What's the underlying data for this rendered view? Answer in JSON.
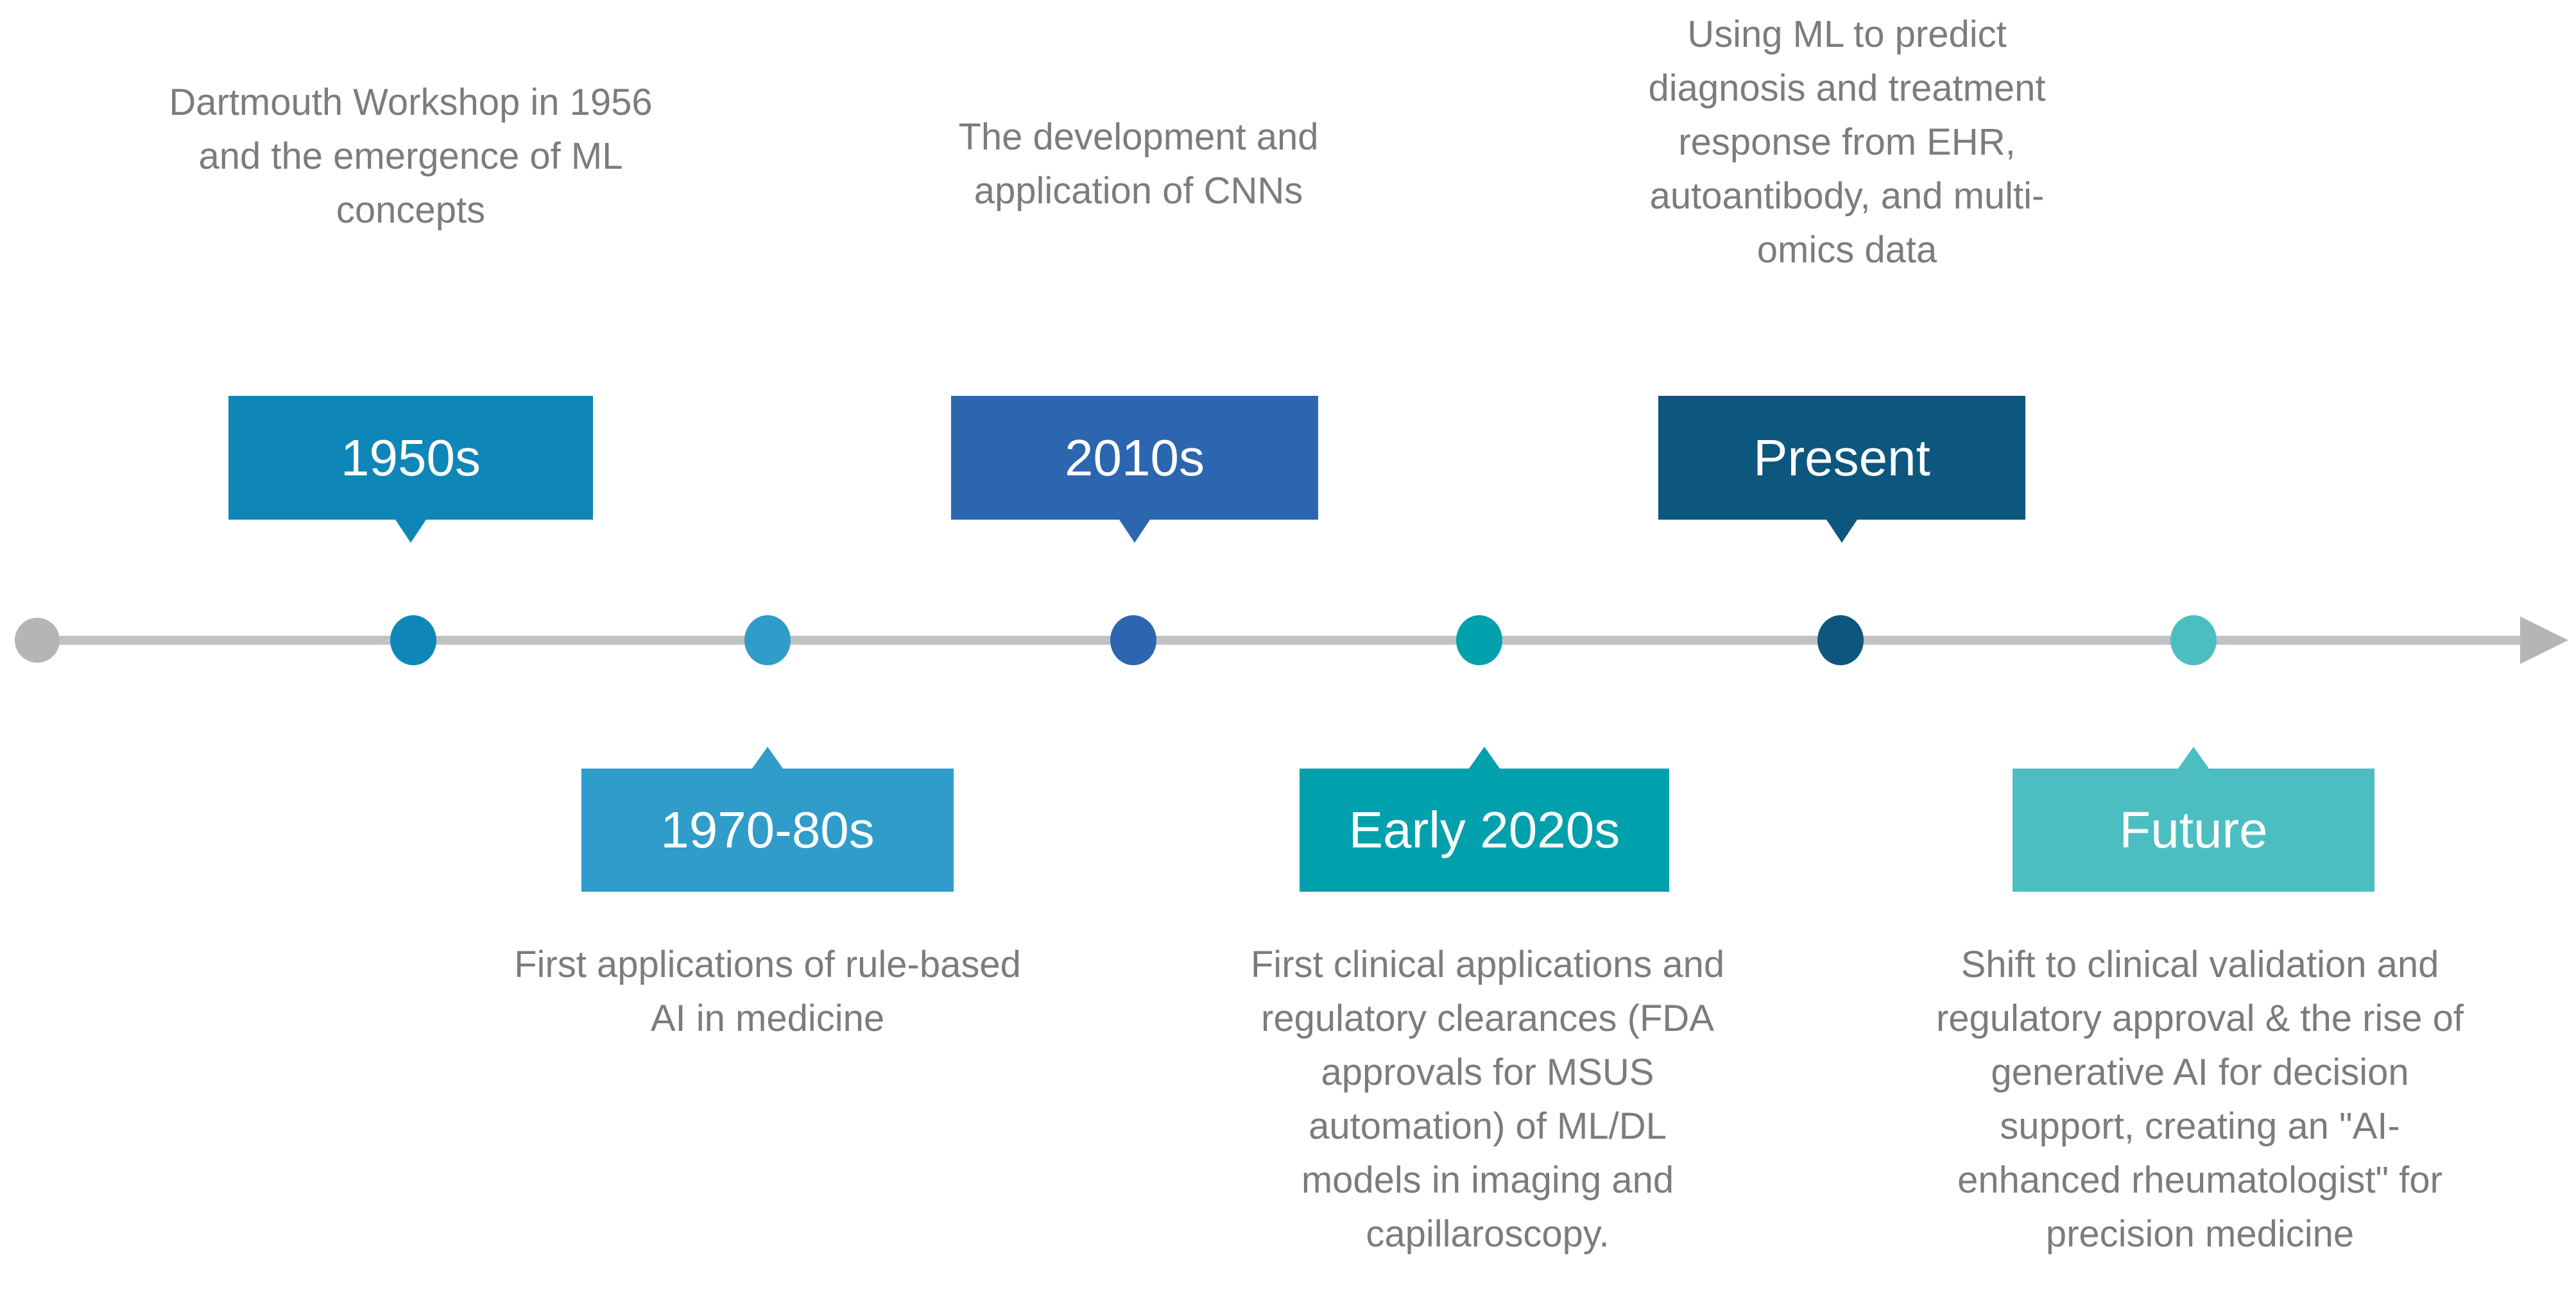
{
  "meta": {
    "background_color": "#ffffff",
    "description_text_color": "#7b7c7e",
    "label_text_color": "#ffffff"
  },
  "timeline": {
    "line_color": "#c2c2c2",
    "start_dot_color": "#b5b5b5",
    "arrow_color": "#b5b5b5"
  },
  "milestones": [
    {
      "id": "1950s",
      "label": "1950s",
      "side": "top",
      "color": "#0e87b8",
      "description": "Dartmouth Workshop in 1956\nand the emergence of ML\nconcepts"
    },
    {
      "id": "1970-80s",
      "label": "1970-80s",
      "side": "bottom",
      "color": "#2f9cc9",
      "description": "First applications of rule-based\nAI in medicine"
    },
    {
      "id": "2010s",
      "label": "2010s",
      "side": "top",
      "color": "#2c66b0",
      "description": "The development and\napplication of CNNs"
    },
    {
      "id": "early-2020s",
      "label": "Early 2020s",
      "side": "bottom",
      "color": "#00a0ac",
      "description": "First clinical applications and\nregulatory clearances (FDA\napprovals for MSUS\nautomation) of ML/DL\nmodels in imaging and\ncapillaroscopy."
    },
    {
      "id": "present",
      "label": "Present",
      "side": "top",
      "color": "#0d567d",
      "description": "Using ML to predict\ndiagnosis and treatment\nresponse from EHR,\nautoantibody, and multi-\nomics data"
    },
    {
      "id": "future",
      "label": "Future",
      "side": "bottom",
      "color": "#4cbec1",
      "description": "Shift to clinical validation and\nregulatory approval & the rise of\ngenerative AI for decision\nsupport, creating an \"AI-\nenhanced rheumatologist\" for\nprecision medicine"
    }
  ]
}
